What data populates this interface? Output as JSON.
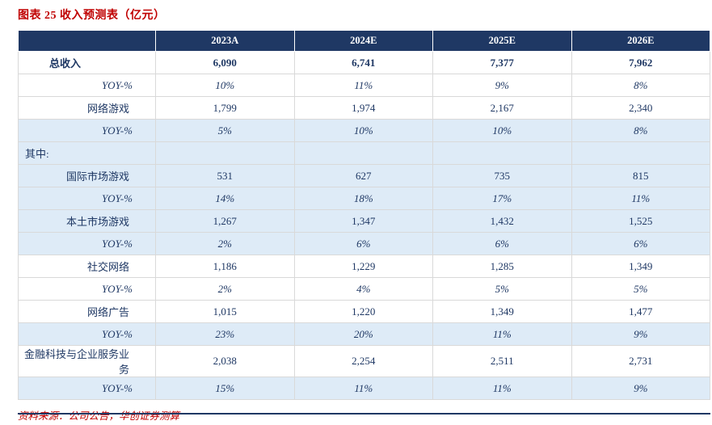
{
  "title": "图表 25 收入预测表（亿元）",
  "source": "资料来源：公司公告，华创证券测算",
  "colors": {
    "header_bg": "#1F3864",
    "header_text": "#FFFFFF",
    "body_text": "#1F3864",
    "shaded_row_bg": "#DEEBF7",
    "title_color": "#C00000",
    "source_color": "#C00000",
    "border": "#D9D9D9"
  },
  "table": {
    "columns": [
      "",
      "2023A",
      "2024E",
      "2025E",
      "2026E"
    ],
    "rows": [
      {
        "label": "总收入",
        "type": "total",
        "shaded": false,
        "values": [
          "6,090",
          "6,741",
          "7,377",
          "7,962"
        ]
      },
      {
        "label": "YOY-%",
        "type": "yoy",
        "shaded": false,
        "values": [
          "10%",
          "11%",
          "9%",
          "8%"
        ]
      },
      {
        "label": "网络游戏",
        "type": "category",
        "shaded": false,
        "values": [
          "1,799",
          "1,974",
          "2,167",
          "2,340"
        ]
      },
      {
        "label": "YOY-%",
        "type": "yoy",
        "shaded": true,
        "values": [
          "5%",
          "10%",
          "10%",
          "8%"
        ]
      },
      {
        "label": "其中:",
        "type": "section",
        "shaded": true,
        "values": [
          "",
          "",
          "",
          ""
        ]
      },
      {
        "label": "国际市场游戏",
        "type": "category",
        "shaded": true,
        "values": [
          "531",
          "627",
          "735",
          "815"
        ]
      },
      {
        "label": "YOY-%",
        "type": "yoy",
        "shaded": true,
        "values": [
          "14%",
          "18%",
          "17%",
          "11%"
        ]
      },
      {
        "label": "本土市场游戏",
        "type": "category",
        "shaded": true,
        "values": [
          "1,267",
          "1,347",
          "1,432",
          "1,525"
        ]
      },
      {
        "label": "YOY-%",
        "type": "yoy",
        "shaded": true,
        "values": [
          "2%",
          "6%",
          "6%",
          "6%"
        ]
      },
      {
        "label": "社交网络",
        "type": "category",
        "shaded": false,
        "values": [
          "1,186",
          "1,229",
          "1,285",
          "1,349"
        ]
      },
      {
        "label": "YOY-%",
        "type": "yoy",
        "shaded": false,
        "values": [
          "2%",
          "4%",
          "5%",
          "5%"
        ]
      },
      {
        "label": "网络广告",
        "type": "category",
        "shaded": false,
        "values": [
          "1,015",
          "1,220",
          "1,349",
          "1,477"
        ]
      },
      {
        "label": "YOY-%",
        "type": "yoy",
        "shaded": true,
        "values": [
          "23%",
          "20%",
          "11%",
          "9%"
        ]
      },
      {
        "label": "金融科技与企业服务业务",
        "type": "category",
        "shaded": false,
        "values": [
          "2,038",
          "2,254",
          "2,511",
          "2,731"
        ]
      },
      {
        "label": "YOY-%",
        "type": "yoy",
        "shaded": true,
        "values": [
          "15%",
          "11%",
          "11%",
          "9%"
        ]
      }
    ]
  }
}
